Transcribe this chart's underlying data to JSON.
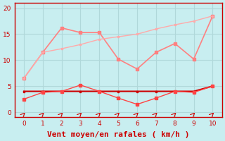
{
  "x": [
    0,
    1,
    2,
    3,
    4,
    5,
    6,
    7,
    8,
    9,
    10
  ],
  "line1_y": [
    6.5,
    11.5,
    16.2,
    15.3,
    15.3,
    10.2,
    8.3,
    11.5,
    13.2,
    10.2,
    18.5
  ],
  "line2_y": [
    6.5,
    11.5,
    12.2,
    13.0,
    14.0,
    14.5,
    15.0,
    16.0,
    16.8,
    17.5,
    18.5
  ],
  "line3_y": [
    4.0,
    4.0,
    4.0,
    4.0,
    4.0,
    4.0,
    4.0,
    4.0,
    4.0,
    4.0,
    5.0
  ],
  "line4_y": [
    2.5,
    3.8,
    4.0,
    5.2,
    4.0,
    2.7,
    1.5,
    2.7,
    4.0,
    3.8,
    5.0
  ],
  "line1_color": "#ff8080",
  "line2_color": "#ffaaaa",
  "line3_color": "#cc0000",
  "line4_color": "#ff4444",
  "bg_color": "#c8eef0",
  "grid_color": "#b0d8da",
  "axis_color": "#cc0000",
  "xlabel": "Vent moyen/en rafales ( km/h )",
  "xlabel_color": "#cc0000",
  "xlabel_fontsize": 8,
  "tick_color": "#cc0000",
  "ylim": [
    -1,
    21
  ],
  "xlim": [
    -0.5,
    10.5
  ],
  "yticks": [
    0,
    5,
    10,
    15,
    20
  ],
  "xticks": [
    0,
    1,
    2,
    3,
    4,
    5,
    6,
    7,
    8,
    9,
    10
  ]
}
